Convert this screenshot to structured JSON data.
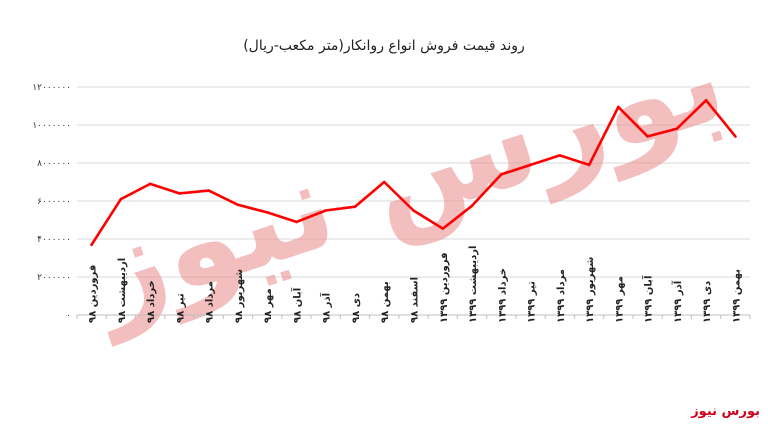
{
  "chart_data": {
    "type": "line",
    "title": "روند قیمت فروش انواع روانکار(متر مکعب-ریال)",
    "xlabel": "",
    "ylabel": "",
    "ylim": [
      0,
      12000000
    ],
    "yticks": [
      0,
      2000000,
      4000000,
      6000000,
      8000000,
      10000000,
      12000000
    ],
    "ytick_labels": [
      "۰",
      "۲۰۰۰۰۰۰",
      "۴۰۰۰۰۰۰",
      "۶۰۰۰۰۰۰",
      "۸۰۰۰۰۰۰",
      "۱۰۰۰۰۰۰۰",
      "۱۲۰۰۰۰۰۰"
    ],
    "grid": true,
    "legend": "none",
    "categories": [
      "فروردین ۹۸",
      "اردیبهشت ۹۸",
      "خرداد ۹۸",
      "تیر ۹۸",
      "مرداد ۹۸",
      "شهریور ۹۸",
      "مهر ۹۸",
      "آبان ۹۸",
      "آذر ۹۸",
      "دی ۹۸",
      "بهمن ۹۸",
      "اسفند ۹۸",
      "فروردین ۱۳۹۹",
      "اردیبهشت ۱۳۹۹",
      "خرداد ۱۳۹۹",
      "تیر ۱۳۹۹",
      "مرداد ۱۳۹۹",
      "شهریور ۱۳۹۹",
      "مهر ۱۳۹۹",
      "آبان ۱۳۹۹",
      "آذر ۱۳۹۹",
      "دی ۱۳۹۹",
      "بهمن ۱۳۹۹"
    ],
    "series": [
      {
        "values": [
          3700000,
          6100000,
          6900000,
          6400000,
          6550000,
          5800000,
          5400000,
          4900000,
          5500000,
          5700000,
          7000000,
          5500000,
          4550000,
          5750000,
          7400000,
          7900000,
          8400000,
          7900000,
          10950000,
          9400000,
          9800000,
          11300000,
          9400000
        ],
        "color": "#ff0000"
      }
    ]
  },
  "watermark": {
    "text": "بورس نیوز",
    "color": "#e98a8a"
  },
  "source": {
    "label": "بورس نیوز",
    "color": "#d0021b"
  }
}
